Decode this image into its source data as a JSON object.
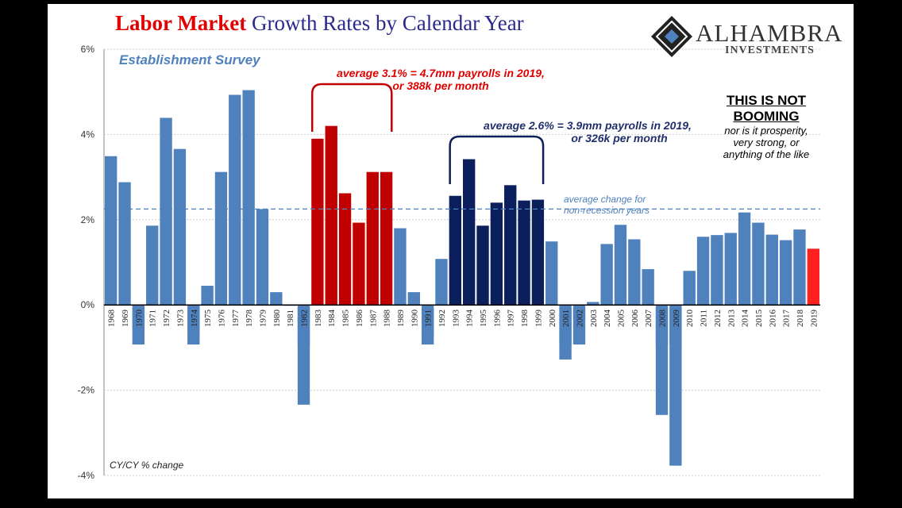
{
  "title": {
    "part1": "Labor Market",
    "part2": "Growth Rates by Calendar Year"
  },
  "logo": {
    "name": "ALHAMBRA",
    "sub": "INVESTMENTS"
  },
  "colors": {
    "default": "#4f81bd",
    "red": "#c00000",
    "navy": "#0b1f5c",
    "dashed": "#4f81bd",
    "highlight_2019": "#ff2020"
  },
  "annotations": {
    "subtitle": "Establishment Survey",
    "red_avg_1": "average 3.1% = 4.7mm payrolls in 2019,",
    "red_avg_2": "or 388k per month",
    "navy_avg_1": "average 2.6% = 3.9mm payrolls in 2019,",
    "navy_avg_2": "or 326k per month",
    "not_booming_1": "THIS IS NOT",
    "not_booming_2": "BOOMING",
    "note_1": "nor is it prosperity,",
    "note_2": "very strong, or",
    "note_3": "anything of the like",
    "avg_line_1": "average change for",
    "avg_line_2": "non-recession years",
    "footer": "CY/CY % change"
  },
  "chart_data": {
    "type": "bar",
    "title": "Labor Market Growth Rates by Calendar Year",
    "ylabel": "CY/CY % change",
    "ylim": [
      -4,
      6
    ],
    "yticks": [
      "6%",
      "4%",
      "2%",
      "0%",
      "-2%",
      "-4%"
    ],
    "ytick_values": [
      6,
      4,
      2,
      0,
      -2,
      -4
    ],
    "grid": true,
    "reference_line": {
      "label": "average change for non-recession years",
      "value": 2.25
    },
    "categories": [
      "1968",
      "1969",
      "1970",
      "1971",
      "1972",
      "1973",
      "1974",
      "1975",
      "1976",
      "1977",
      "1978",
      "1979",
      "1980",
      "1981",
      "1982",
      "1983",
      "1984",
      "1985",
      "1986",
      "1987",
      "1988",
      "1989",
      "1990",
      "1991",
      "1992",
      "1993",
      "1994",
      "1995",
      "1996",
      "1997",
      "1998",
      "1999",
      "2000",
      "2001",
      "2002",
      "2003",
      "2004",
      "2005",
      "2006",
      "2007",
      "2008",
      "2009",
      "2010",
      "2011",
      "2012",
      "2013",
      "2014",
      "2015",
      "2016",
      "2017",
      "2018",
      "2019"
    ],
    "values": [
      3.49,
      2.88,
      -0.6,
      1.86,
      4.39,
      3.66,
      -0.62,
      0.45,
      3.12,
      4.93,
      5.04,
      2.25,
      0.3,
      -0.02,
      -2.34,
      3.9,
      4.2,
      2.62,
      1.93,
      3.12,
      3.12,
      1.8,
      0.3,
      -0.76,
      1.08,
      2.56,
      3.42,
      1.86,
      2.4,
      2.81,
      2.45,
      2.47,
      1.49,
      -1.28,
      -0.35,
      0.07,
      1.43,
      1.88,
      1.54,
      0.84,
      -2.58,
      -3.77,
      0.8,
      1.6,
      1.64,
      1.69,
      2.17,
      1.93,
      1.65,
      1.52,
      1.77,
      1.32
    ],
    "recession_years": [
      "1970",
      "1974",
      "1982",
      "1991",
      "2001",
      "2002",
      "2008",
      "2009"
    ],
    "red_years": [
      "1983",
      "1984",
      "1985",
      "1986",
      "1987",
      "1988"
    ],
    "navy_years": [
      "1993",
      "1994",
      "1995",
      "1996",
      "1997",
      "1998",
      "1999"
    ]
  }
}
